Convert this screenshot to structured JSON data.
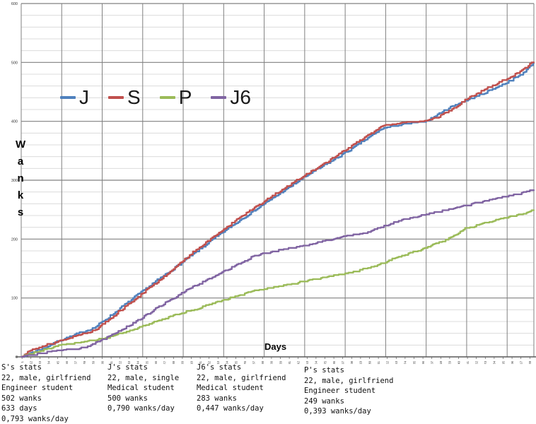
{
  "chart_data": {
    "type": "line",
    "title": "",
    "xlabel": "Days",
    "ylabel": "Wanks",
    "xlim": [
      0,
      633
    ],
    "ylim": [
      0,
      600
    ],
    "y_ticks": [
      0,
      100,
      200,
      300,
      400,
      500,
      600
    ],
    "y_minor_step": 20,
    "x_ticks": {
      "start": 1,
      "step": 11,
      "end": 628
    },
    "x_major_grid_step_days": 50,
    "grid": "major-dark-gray, minor-light-gray, stepped cumulative lines",
    "legend_position": "top-left-inside",
    "colors": {
      "J": "#4F81BD",
      "S": "#C0504D",
      "P": "#9BBB59",
      "J6": "#8064A2",
      "grid_major": "#808080",
      "grid_minor": "#DCDCDC",
      "axis": "#595959",
      "tick_text": "#333333"
    },
    "series": [
      {
        "name": "J",
        "color": "#4F81BD",
        "total": 500,
        "waypoints": [
          [
            0,
            0
          ],
          [
            10,
            6
          ],
          [
            30,
            16
          ],
          [
            43,
            25
          ],
          [
            60,
            34
          ],
          [
            91,
            50
          ],
          [
            120,
            80
          ],
          [
            150,
            112
          ],
          [
            180,
            142
          ],
          [
            210,
            172
          ],
          [
            240,
            203
          ],
          [
            270,
            232
          ],
          [
            300,
            260
          ],
          [
            330,
            287
          ],
          [
            350,
            306
          ],
          [
            380,
            330
          ],
          [
            410,
            355
          ],
          [
            435,
            378
          ],
          [
            446,
            388
          ],
          [
            470,
            394
          ],
          [
            498,
            399
          ],
          [
            515,
            412
          ],
          [
            535,
            428
          ],
          [
            555,
            438
          ],
          [
            575,
            450
          ],
          [
            600,
            466
          ],
          [
            618,
            480
          ],
          [
            633,
            500
          ]
        ]
      },
      {
        "name": "S",
        "color": "#C0504D",
        "total": 502,
        "waypoints": [
          [
            0,
            0
          ],
          [
            10,
            10
          ],
          [
            30,
            20
          ],
          [
            43,
            25
          ],
          [
            60,
            32
          ],
          [
            91,
            45
          ],
          [
            120,
            76
          ],
          [
            150,
            108
          ],
          [
            180,
            140
          ],
          [
            210,
            175
          ],
          [
            240,
            207
          ],
          [
            270,
            237
          ],
          [
            300,
            264
          ],
          [
            330,
            291
          ],
          [
            350,
            308
          ],
          [
            380,
            333
          ],
          [
            410,
            360
          ],
          [
            435,
            382
          ],
          [
            446,
            392
          ],
          [
            460,
            396
          ],
          [
            498,
            400
          ],
          [
            515,
            407
          ],
          [
            535,
            423
          ],
          [
            555,
            442
          ],
          [
            575,
            456
          ],
          [
            600,
            472
          ],
          [
            618,
            486
          ],
          [
            633,
            502
          ]
        ]
      },
      {
        "name": "P",
        "color": "#9BBB59",
        "total": 249,
        "waypoints": [
          [
            0,
            0
          ],
          [
            20,
            8
          ],
          [
            50,
            20
          ],
          [
            80,
            26
          ],
          [
            105,
            32
          ],
          [
            140,
            46
          ],
          [
            170,
            62
          ],
          [
            208,
            78
          ],
          [
            250,
            96
          ],
          [
            289,
            112
          ],
          [
            320,
            120
          ],
          [
            350,
            128
          ],
          [
            380,
            136
          ],
          [
            411,
            144
          ],
          [
            440,
            155
          ],
          [
            463,
            168
          ],
          [
            500,
            185
          ],
          [
            530,
            202
          ],
          [
            548,
            218
          ],
          [
            575,
            228
          ],
          [
            600,
            236
          ],
          [
            620,
            243
          ],
          [
            633,
            249
          ]
        ]
      },
      {
        "name": "J6",
        "color": "#8064A2",
        "total": 283,
        "waypoints": [
          [
            0,
            0
          ],
          [
            20,
            4
          ],
          [
            50,
            12
          ],
          [
            80,
            16
          ],
          [
            105,
            32
          ],
          [
            140,
            58
          ],
          [
            170,
            85
          ],
          [
            208,
            116
          ],
          [
            250,
            145
          ],
          [
            289,
            172
          ],
          [
            320,
            181
          ],
          [
            360,
            192
          ],
          [
            400,
            204
          ],
          [
            430,
            212
          ],
          [
            463,
            230
          ],
          [
            500,
            241
          ],
          [
            553,
            258
          ],
          [
            590,
            270
          ],
          [
            612,
            276
          ],
          [
            633,
            283
          ]
        ]
      }
    ]
  },
  "legend": {
    "items": [
      {
        "label": "J",
        "color": "#4F81BD"
      },
      {
        "label": "S",
        "color": "#C0504D"
      },
      {
        "label": "P",
        "color": "#9BBB59"
      },
      {
        "label": "J6",
        "color": "#8064A2"
      }
    ]
  },
  "stats": [
    {
      "title": "S's stats",
      "lines": [
        "22, male, girlfriend",
        "Engineer student",
        "502 wanks",
        "633 days",
        "0,793 wanks/day"
      ]
    },
    {
      "title": "J's stats",
      "lines": [
        "22, male, single",
        "Medical student",
        "500 wanks",
        "0,790 wanks/day"
      ]
    },
    {
      "title": "J6's stats",
      "lines": [
        "22, male, girlfriend",
        "Medical student",
        "283 wanks",
        "0,447 wanks/day"
      ]
    },
    {
      "title": "P's stats",
      "lines": [
        "22, male, girlfriend",
        "Engineer student",
        "249 wanks",
        "0,393 wanks/day"
      ]
    }
  ]
}
